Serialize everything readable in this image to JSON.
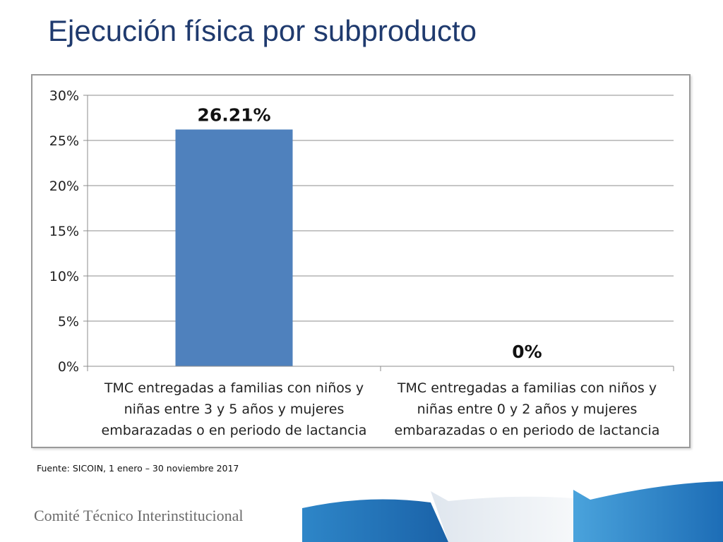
{
  "slide": {
    "title": "Ejecución física por subproducto",
    "source": "Fuente: SICOIN, 1 enero – 30 noviembre 2017",
    "organization": "Comité Técnico Interinstitucional"
  },
  "colors": {
    "title": "#1f3a6e",
    "bar": "#4f81bd",
    "gridline": "#8c8c8c",
    "footer_blue_dark": "#1f6fb5",
    "footer_blue_light": "#7fb8e0"
  },
  "chart_data": {
    "type": "bar",
    "title": "",
    "xlabel": "",
    "ylabel": "",
    "categories": [
      [
        "TMC entregadas a familias con niños y",
        "niñas entre 3 y 5 años y mujeres",
        "embarazadas o en periodo de lactancia"
      ],
      [
        "TMC entregadas a familias con niños y",
        "niñas entre 0 y 2 años y mujeres",
        "embarazadas o en periodo de lactancia"
      ]
    ],
    "values": [
      26.21,
      0
    ],
    "data_labels": [
      "26.21%",
      "0%"
    ],
    "ylim": [
      0,
      30
    ],
    "yticks": [
      0,
      5,
      10,
      15,
      20,
      25,
      30
    ],
    "ytick_labels": [
      "0%",
      "5%",
      "10%",
      "15%",
      "20%",
      "25%",
      "30%"
    ],
    "grid": true,
    "legend": "none"
  }
}
